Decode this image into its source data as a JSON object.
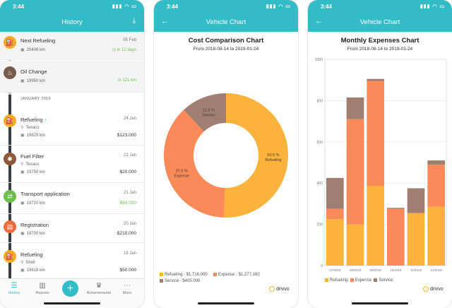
{
  "status": {
    "time": "3:44",
    "icons": "▮▮▮ ◠ ▭"
  },
  "history": {
    "title": "History",
    "download_icon": "download-icon",
    "items": [
      {
        "title": "Next Refueling",
        "date": "05 Feb",
        "sub": "20406 km",
        "extra": "in 12 days",
        "icon": "fuel-icon",
        "color": "#f7a928"
      },
      {
        "title": "Oil Change",
        "date": "",
        "sub": "19950 km",
        "extra": "in 121 km",
        "icon": "oil-icon",
        "color": "#7a5a4a"
      },
      {
        "title": "Refueling",
        "date": "24 Jan",
        "place": "Texaco",
        "sub": "19829 km",
        "amount": "$123.000",
        "icon": "fuel-icon",
        "color": "#f7a928"
      },
      {
        "title": "Fuel Filter",
        "date": "22 Jan",
        "place": "Texaco",
        "sub": "19750 km",
        "amount": "$20.000",
        "icon": "wrench-icon",
        "color": "#8c5a3a"
      },
      {
        "title": "Transport application",
        "date": "21 Jan",
        "sub": "19720 km",
        "amount": "$50.000",
        "icon": "route-icon",
        "color": "#6bbf4e"
      },
      {
        "title": "Registration",
        "date": "20 Jan",
        "sub": "19700 km",
        "amount": "$210.000",
        "icon": "document-icon",
        "color": "#f06a3a"
      },
      {
        "title": "Refueling",
        "date": "18 Jan",
        "place": "Shell",
        "sub": "19618 km",
        "amount": "$50.000",
        "icon": "fuel-icon",
        "color": "#f7a928"
      }
    ],
    "month_label": "JANUARY 2019",
    "tabs": [
      {
        "label": "History",
        "icon": "list-icon"
      },
      {
        "label": "Reports",
        "icon": "chart-icon"
      },
      {
        "label": "Achievements",
        "icon": "trophy-icon"
      },
      {
        "label": "More",
        "icon": "more-icon"
      }
    ],
    "fab": "+"
  },
  "donut_screen": {
    "title": "Vehicle Chart",
    "chart_title": "Cost Comparison Chart",
    "range": "From 2018-08-14 to 2019-01-24",
    "brand": "drivvo"
  },
  "bar_screen": {
    "title": "Vehicle Chart",
    "chart_title": "Monthly Expenses Chart",
    "range": "From 2018-08-14 to 2019-01-24",
    "brand": "drivvo"
  },
  "chart_data": [
    {
      "type": "pie",
      "title": "Cost Comparison Chart",
      "subtitle": "From 2018-08-14 to 2019-01-24",
      "categories": [
        "Refueling",
        "Expense",
        "Service"
      ],
      "values": [
        1716000,
        1277160,
        405000
      ],
      "slice_labels": [
        "50.5 %\nRefueling",
        "37.6 %\nExpense",
        "11.9 %\nService"
      ],
      "legend": [
        "Refueling - $1,716.000",
        "Expense - $1,277.160",
        "Service - $405.000"
      ],
      "colors": [
        "#fbb33c",
        "#fa8a58",
        "#a07f72"
      ]
    },
    {
      "type": "bar",
      "stacked": true,
      "title": "Monthly Expenses Chart",
      "subtitle": "From 2018-08-14 to 2019-01-24",
      "categories": [
        "07/2018",
        "08/2018",
        "09/2018",
        "10/2018",
        "11/2018",
        "12/2018"
      ],
      "series": [
        {
          "name": "Refueling",
          "values": [
            225,
            200,
            385,
            0,
            255,
            285
          ],
          "color": "#fbb33c"
        },
        {
          "name": "Expense",
          "values": [
            50,
            510,
            510,
            275,
            0,
            205
          ],
          "color": "#fa8a58"
        },
        {
          "name": "Service",
          "values": [
            150,
            105,
            10,
            5,
            120,
            20
          ],
          "color": "#a07f72"
        }
      ],
      "ylim": [
        0,
        1000
      ],
      "yticks": [
        "0",
        "200",
        "400",
        "600",
        "800",
        "1000"
      ],
      "grid": true,
      "legend_position": "bottom"
    }
  ]
}
